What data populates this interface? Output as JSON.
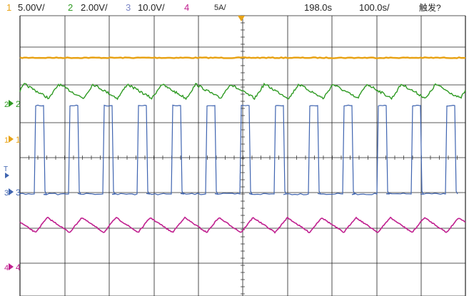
{
  "status_bar": {
    "ch1": {
      "num": "1",
      "scale": "5.00V/",
      "color": "#e8a317"
    },
    "ch2": {
      "num": "2",
      "scale": "2.00V/",
      "color": "#2e9a22"
    },
    "ch3": {
      "num": "3",
      "scale": "10.0V/",
      "color": "#7b86c6"
    },
    "ch4": {
      "num": "4",
      "scale": "5A/",
      "color": "#c0208f"
    },
    "time_offset": "198.0s",
    "timebase": "100.0s/",
    "trigger_state": "触发?"
  },
  "markers": {
    "ch1": "1",
    "ch2": "2",
    "ch3": "3",
    "ch4": "4",
    "trigger": "T"
  },
  "colors": {
    "ch1": "#e8a317",
    "ch2": "#2e9a22",
    "ch3": "#3f64b0",
    "ch4": "#c0208f",
    "grid": "#222222",
    "trigger": "#3f64b0"
  },
  "waveforms": {
    "ch3_pulse_count": 13,
    "ch4_ramp_cycles": 13,
    "ch2_ripple_cycles": 13
  }
}
